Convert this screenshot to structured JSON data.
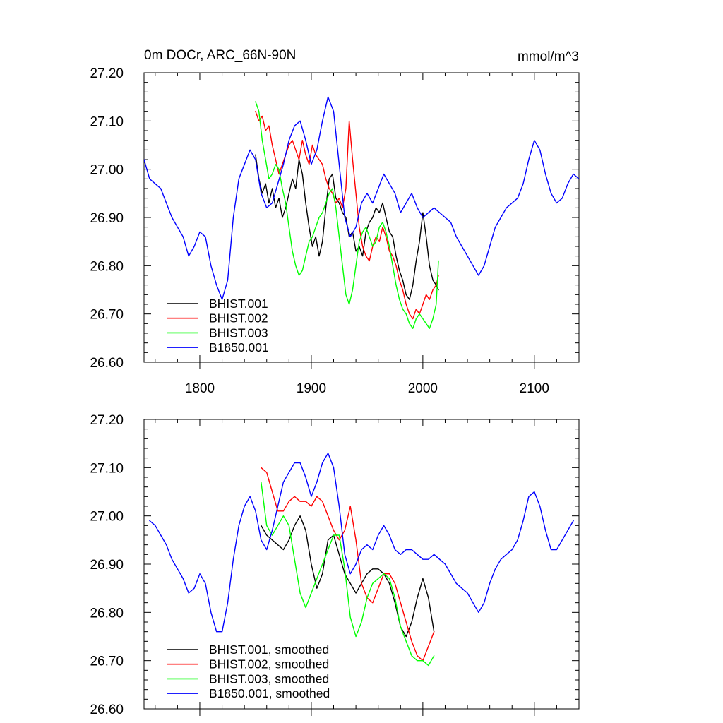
{
  "chart_data": [
    {
      "type": "line",
      "title_left": "0m DOCr, ARC_66N-90N",
      "title_right": "mmol/m^3",
      "xlim": [
        1750,
        2140
      ],
      "ylim": [
        26.6,
        27.2
      ],
      "x_ticks": [
        1800,
        1900,
        2000,
        2100
      ],
      "x_tick_labels": [
        "1800",
        "1900",
        "2000",
        "2100"
      ],
      "y_ticks": [
        26.6,
        26.7,
        26.8,
        26.9,
        27.0,
        27.1,
        27.2
      ],
      "y_tick_labels": [
        "26.60",
        "26.70",
        "26.80",
        "26.90",
        "27.00",
        "27.10",
        "27.20"
      ],
      "legend_position": "bottom-left",
      "series": [
        {
          "name": "BHIST.001",
          "color": "#000000",
          "x": [
            1850,
            1853,
            1856,
            1859,
            1862,
            1865,
            1868,
            1871,
            1874,
            1877,
            1880,
            1883,
            1886,
            1889,
            1892,
            1895,
            1898,
            1901,
            1904,
            1907,
            1910,
            1913,
            1916,
            1919,
            1922,
            1925,
            1928,
            1931,
            1934,
            1937,
            1940,
            1943,
            1946,
            1949,
            1952,
            1955,
            1958,
            1961,
            1964,
            1967,
            1970,
            1973,
            1976,
            1979,
            1982,
            1985,
            1988,
            1991,
            1994,
            1997,
            2000,
            2003,
            2006,
            2009,
            2012,
            2014
          ],
          "y": [
            27.03,
            26.98,
            26.95,
            26.97,
            26.93,
            26.96,
            26.92,
            26.94,
            26.9,
            26.92,
            26.95,
            26.98,
            26.96,
            27.02,
            26.99,
            26.93,
            26.88,
            26.84,
            26.86,
            26.82,
            26.85,
            26.92,
            26.98,
            26.99,
            26.94,
            26.93,
            26.91,
            26.9,
            26.86,
            26.87,
            26.83,
            26.84,
            26.82,
            26.87,
            26.89,
            26.9,
            26.92,
            26.91,
            26.93,
            26.9,
            26.87,
            26.86,
            26.82,
            26.79,
            26.77,
            26.74,
            26.73,
            26.76,
            26.81,
            26.85,
            26.91,
            26.86,
            26.8,
            26.77,
            26.76,
            26.75
          ]
        },
        {
          "name": "BHIST.002",
          "color": "#ff0000",
          "x": [
            1850,
            1853,
            1856,
            1859,
            1862,
            1865,
            1868,
            1871,
            1874,
            1877,
            1880,
            1883,
            1886,
            1889,
            1892,
            1895,
            1898,
            1901,
            1904,
            1907,
            1910,
            1913,
            1916,
            1919,
            1922,
            1925,
            1928,
            1931,
            1934,
            1937,
            1940,
            1943,
            1946,
            1949,
            1952,
            1955,
            1958,
            1961,
            1964,
            1967,
            1970,
            1973,
            1976,
            1979,
            1982,
            1985,
            1988,
            1991,
            1994,
            1997,
            2000,
            2003,
            2006,
            2009,
            2012,
            2014
          ],
          "y": [
            27.12,
            27.1,
            27.11,
            27.08,
            27.09,
            27.05,
            27.02,
            26.99,
            27.01,
            27.03,
            27.05,
            27.06,
            27.04,
            27.02,
            27.06,
            27.03,
            27.01,
            27.05,
            27.03,
            27.02,
            27.01,
            26.98,
            26.96,
            26.95,
            26.93,
            26.94,
            26.92,
            26.96,
            27.1,
            27.02,
            26.95,
            26.88,
            26.84,
            26.82,
            26.81,
            26.84,
            26.86,
            26.85,
            26.88,
            26.86,
            26.83,
            26.82,
            26.8,
            26.77,
            26.75,
            26.72,
            26.7,
            26.69,
            26.71,
            26.7,
            26.72,
            26.74,
            26.73,
            26.75,
            26.76,
            26.78
          ]
        },
        {
          "name": "BHIST.003",
          "color": "#00ff00",
          "x": [
            1850,
            1853,
            1856,
            1859,
            1862,
            1865,
            1868,
            1871,
            1874,
            1877,
            1880,
            1883,
            1886,
            1889,
            1892,
            1895,
            1898,
            1901,
            1904,
            1907,
            1910,
            1913,
            1916,
            1919,
            1922,
            1925,
            1928,
            1931,
            1934,
            1937,
            1940,
            1943,
            1946,
            1949,
            1952,
            1955,
            1958,
            1961,
            1964,
            1967,
            1970,
            1973,
            1976,
            1979,
            1982,
            1985,
            1988,
            1991,
            1994,
            1997,
            2000,
            2003,
            2006,
            2009,
            2012,
            2014
          ],
          "y": [
            27.14,
            27.12,
            27.06,
            27.02,
            26.98,
            26.99,
            27.01,
            27.0,
            26.96,
            26.93,
            26.88,
            26.83,
            26.8,
            26.78,
            26.79,
            26.82,
            26.85,
            26.86,
            26.88,
            26.9,
            26.91,
            26.93,
            26.95,
            26.96,
            26.92,
            26.86,
            26.8,
            26.74,
            26.72,
            26.75,
            26.8,
            26.85,
            26.87,
            26.88,
            26.86,
            26.84,
            26.85,
            26.88,
            26.89,
            26.87,
            26.84,
            26.8,
            26.76,
            26.73,
            26.71,
            26.7,
            26.68,
            26.67,
            26.69,
            26.7,
            26.69,
            26.68,
            26.67,
            26.69,
            26.72,
            26.81
          ]
        },
        {
          "name": "B1850.001",
          "color": "#0000ff",
          "x": [
            1750,
            1755,
            1760,
            1765,
            1770,
            1775,
            1780,
            1785,
            1790,
            1795,
            1800,
            1805,
            1810,
            1815,
            1820,
            1825,
            1830,
            1835,
            1840,
            1845,
            1850,
            1855,
            1860,
            1865,
            1870,
            1875,
            1880,
            1885,
            1890,
            1895,
            1900,
            1905,
            1910,
            1915,
            1920,
            1925,
            1930,
            1935,
            1940,
            1945,
            1950,
            1955,
            1960,
            1965,
            1970,
            1975,
            1980,
            1985,
            1990,
            1995,
            2000,
            2005,
            2010,
            2015,
            2020,
            2025,
            2030,
            2035,
            2040,
            2045,
            2050,
            2055,
            2060,
            2065,
            2070,
            2075,
            2080,
            2085,
            2090,
            2095,
            2100,
            2105,
            2110,
            2115,
            2120,
            2125,
            2130,
            2135,
            2140
          ],
          "y": [
            27.02,
            26.98,
            26.97,
            26.96,
            26.93,
            26.9,
            26.88,
            26.86,
            26.82,
            26.84,
            26.87,
            26.86,
            26.8,
            26.76,
            26.73,
            26.77,
            26.9,
            26.98,
            27.01,
            27.04,
            27.02,
            26.95,
            26.92,
            26.93,
            26.97,
            27.01,
            27.06,
            27.09,
            27.1,
            27.06,
            27.01,
            27.04,
            27.1,
            27.15,
            27.12,
            27.01,
            26.9,
            26.86,
            26.88,
            26.93,
            26.95,
            26.93,
            26.96,
            26.99,
            26.97,
            26.95,
            26.91,
            26.93,
            26.95,
            26.92,
            26.9,
            26.91,
            26.92,
            26.91,
            26.9,
            26.89,
            26.86,
            26.84,
            26.82,
            26.8,
            26.78,
            26.8,
            26.84,
            26.88,
            26.9,
            26.92,
            26.93,
            26.94,
            26.97,
            27.02,
            27.06,
            27.04,
            26.99,
            26.95,
            26.93,
            26.94,
            26.97,
            26.99,
            26.98
          ]
        }
      ]
    },
    {
      "type": "line",
      "xlim": [
        1750,
        2140
      ],
      "ylim": [
        26.6,
        27.2
      ],
      "x_ticks": [
        1800,
        1900,
        2000,
        2100
      ],
      "y_ticks": [
        26.6,
        26.7,
        26.8,
        26.9,
        27.0,
        27.1,
        27.2
      ],
      "y_tick_labels": [
        "26.60",
        "26.70",
        "26.80",
        "26.90",
        "27.00",
        "27.10",
        "27.20"
      ],
      "legend_position": "bottom-left",
      "series": [
        {
          "name": "BHIST.001, smoothed",
          "color": "#000000",
          "x": [
            1855,
            1860,
            1865,
            1870,
            1875,
            1880,
            1885,
            1890,
            1895,
            1900,
            1905,
            1910,
            1915,
            1920,
            1925,
            1930,
            1935,
            1940,
            1945,
            1950,
            1955,
            1960,
            1965,
            1970,
            1975,
            1980,
            1985,
            1990,
            1995,
            2000,
            2005,
            2010
          ],
          "y": [
            26.98,
            26.96,
            26.95,
            26.94,
            26.93,
            26.95,
            26.98,
            27.0,
            26.97,
            26.9,
            26.85,
            26.88,
            26.95,
            26.96,
            26.92,
            26.88,
            26.86,
            26.84,
            26.86,
            26.88,
            26.89,
            26.89,
            26.88,
            26.86,
            26.82,
            26.77,
            26.75,
            26.78,
            26.83,
            26.87,
            26.83,
            26.76
          ]
        },
        {
          "name": "BHIST.002, smoothed",
          "color": "#ff0000",
          "x": [
            1855,
            1860,
            1865,
            1870,
            1875,
            1880,
            1885,
            1890,
            1895,
            1900,
            1905,
            1910,
            1915,
            1920,
            1925,
            1930,
            1935,
            1940,
            1945,
            1950,
            1955,
            1960,
            1965,
            1970,
            1975,
            1980,
            1985,
            1990,
            1995,
            2000,
            2005,
            2010
          ],
          "y": [
            27.1,
            27.09,
            27.05,
            27.01,
            27.01,
            27.03,
            27.04,
            27.03,
            27.03,
            27.02,
            27.04,
            27.03,
            27.0,
            26.97,
            26.95,
            26.97,
            27.02,
            26.95,
            26.86,
            26.83,
            26.82,
            26.85,
            26.88,
            26.88,
            26.86,
            26.82,
            26.78,
            26.74,
            26.71,
            26.7,
            26.73,
            26.76
          ]
        },
        {
          "name": "BHIST.003, smoothed",
          "color": "#00ff00",
          "x": [
            1855,
            1860,
            1865,
            1870,
            1875,
            1880,
            1885,
            1890,
            1895,
            1900,
            1905,
            1910,
            1915,
            1920,
            1925,
            1930,
            1935,
            1940,
            1945,
            1950,
            1955,
            1960,
            1965,
            1970,
            1975,
            1980,
            1985,
            1990,
            1995,
            2000,
            2005,
            2010
          ],
          "y": [
            27.07,
            26.98,
            26.96,
            26.98,
            27.0,
            26.98,
            26.91,
            26.84,
            26.81,
            26.84,
            26.87,
            26.9,
            26.93,
            26.96,
            26.96,
            26.89,
            26.79,
            26.75,
            26.78,
            26.83,
            26.86,
            26.87,
            26.88,
            26.87,
            26.83,
            26.77,
            26.74,
            26.71,
            26.7,
            26.7,
            26.69,
            26.71
          ]
        },
        {
          "name": "B1850.001, smoothed",
          "color": "#0000ff",
          "x": [
            1755,
            1760,
            1765,
            1770,
            1775,
            1780,
            1785,
            1790,
            1795,
            1800,
            1805,
            1810,
            1815,
            1820,
            1825,
            1830,
            1835,
            1840,
            1845,
            1850,
            1855,
            1860,
            1865,
            1870,
            1875,
            1880,
            1885,
            1890,
            1895,
            1900,
            1905,
            1910,
            1915,
            1920,
            1925,
            1930,
            1935,
            1940,
            1945,
            1950,
            1955,
            1960,
            1965,
            1970,
            1975,
            1980,
            1985,
            1990,
            1995,
            2000,
            2005,
            2010,
            2015,
            2020,
            2025,
            2030,
            2035,
            2040,
            2045,
            2050,
            2055,
            2060,
            2065,
            2070,
            2075,
            2080,
            2085,
            2090,
            2095,
            2100,
            2105,
            2110,
            2115,
            2120,
            2125,
            2130,
            2135
          ],
          "y": [
            26.99,
            26.98,
            26.96,
            26.94,
            26.91,
            26.89,
            26.87,
            26.84,
            26.85,
            26.88,
            26.86,
            26.8,
            26.76,
            26.76,
            26.82,
            26.91,
            26.98,
            27.02,
            27.04,
            27.01,
            26.95,
            26.93,
            26.97,
            27.02,
            27.07,
            27.09,
            27.11,
            27.11,
            27.08,
            27.04,
            27.07,
            27.11,
            27.13,
            27.1,
            27.02,
            26.92,
            26.88,
            26.9,
            26.93,
            26.94,
            26.93,
            26.96,
            26.98,
            26.96,
            26.93,
            26.92,
            26.93,
            26.93,
            26.92,
            26.91,
            26.91,
            26.92,
            26.91,
            26.9,
            26.88,
            26.86,
            26.85,
            26.84,
            26.82,
            26.8,
            26.82,
            26.86,
            26.89,
            26.91,
            26.92,
            26.93,
            26.95,
            26.99,
            27.04,
            27.05,
            27.02,
            26.97,
            26.93,
            26.93,
            26.95,
            26.97,
            26.99
          ]
        }
      ]
    }
  ]
}
